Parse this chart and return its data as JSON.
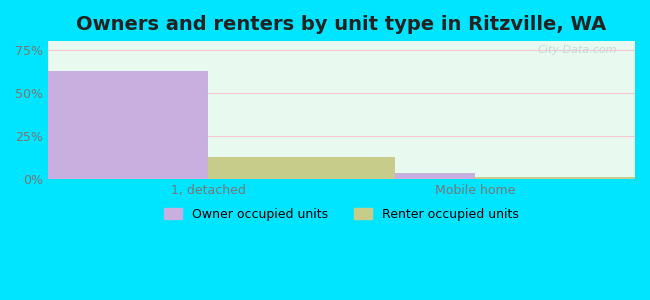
{
  "title": "Owners and renters by unit type in Ritzville, WA",
  "categories": [
    "1, detached",
    "Mobile home"
  ],
  "owner_values": [
    63.0,
    3.5
  ],
  "renter_values": [
    13.0,
    1.5
  ],
  "owner_color": "#c9aee0",
  "renter_color": "#c8cc8a",
  "bar_width": 0.35,
  "ylim": [
    0,
    80
  ],
  "yticks": [
    0,
    25,
    50,
    75
  ],
  "ytick_labels": [
    "0%",
    "25%",
    "50%",
    "75%"
  ],
  "background_color": "#e8faf0",
  "outer_background": "#00e5ff",
  "grid_color": "#f5c8d8",
  "watermark": "City-Data.com",
  "legend_owner": "Owner occupied units",
  "legend_renter": "Renter occupied units",
  "title_fontsize": 14,
  "axis_fontsize": 9,
  "legend_fontsize": 9
}
